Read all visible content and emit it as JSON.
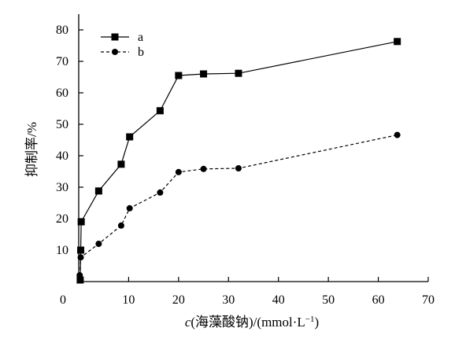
{
  "chart_data": {
    "type": "line",
    "title": "",
    "xlabel_italic": "c",
    "xlabel_rest": "(海藻酸钠)/(mmol·L",
    "xlabel_sup": "−1",
    "xlabel_close": ")",
    "ylabel": "抑制率/%",
    "xlim": [
      0,
      70
    ],
    "ylim": [
      0,
      85
    ],
    "xticks": [
      "0",
      "10",
      "20",
      "30",
      "40",
      "50",
      "60",
      "70"
    ],
    "yticks": [
      "10",
      "20",
      "30",
      "40",
      "50",
      "60",
      "70",
      "80"
    ],
    "grid": false,
    "legend_position": "top-left",
    "series": [
      {
        "name": "a",
        "marker": "square",
        "line_style": "solid",
        "x": [
          0.3,
          0.4,
          0.5,
          4.0,
          8.5,
          10.2,
          16.3,
          20.0,
          25.0,
          32.0,
          63.8
        ],
        "y": [
          0.5,
          10.0,
          19.0,
          28.8,
          37.3,
          46.0,
          54.3,
          65.5,
          66.0,
          66.2,
          76.3
        ]
      },
      {
        "name": "b",
        "marker": "circle",
        "line_style": "dashed",
        "x": [
          0.2,
          0.4,
          4.0,
          8.5,
          10.2,
          16.3,
          20.0,
          25.0,
          32.0,
          63.8
        ],
        "y": [
          2.0,
          7.7,
          12.0,
          17.8,
          23.3,
          28.3,
          34.8,
          35.8,
          36.0,
          46.6
        ]
      }
    ]
  }
}
